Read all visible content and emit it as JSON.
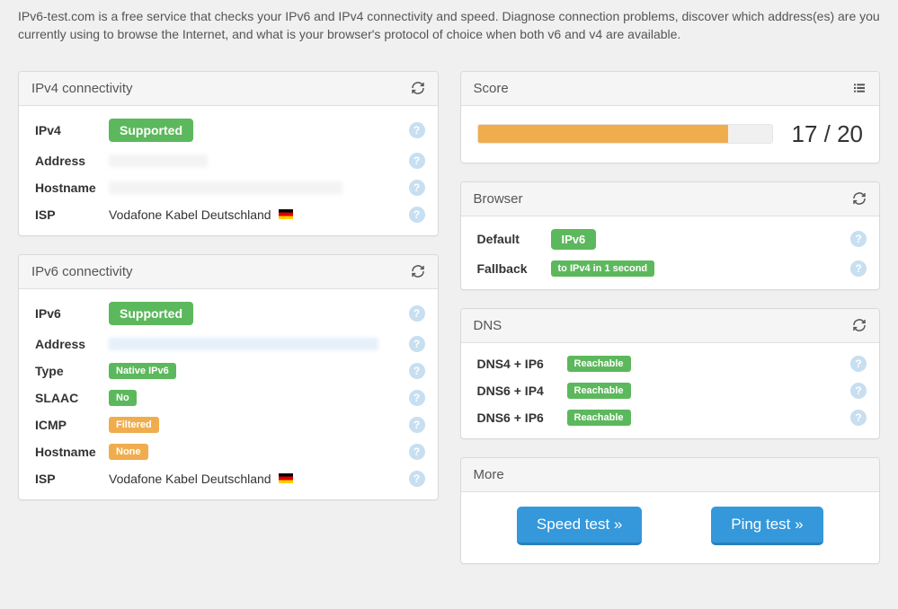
{
  "subtitle": "IPv6-test.com is a free service that checks your IPv6 and IPv4 connectivity and speed. Diagnose connection problems, discover which address(es) are you currently using to browse the Internet, and what is your browser's protocol of choice when both v6 and v4 are available.",
  "ipv4_panel": {
    "title": "IPv4 connectivity",
    "rows": {
      "ipv4": {
        "label": "IPv4",
        "badge": "Supported",
        "badge_color": "green"
      },
      "address": {
        "label": "Address",
        "redacted": true,
        "redact_width": 110,
        "redact_tint": "plain"
      },
      "hostname": {
        "label": "Hostname",
        "redacted": true,
        "redact_width": 260,
        "redact_tint": "plain"
      },
      "isp": {
        "label": "ISP",
        "text": "Vodafone Kabel Deutschland",
        "flag": "de"
      }
    }
  },
  "ipv6_panel": {
    "title": "IPv6 connectivity",
    "rows": {
      "ipv6": {
        "label": "IPv6",
        "badge": "Supported",
        "badge_color": "green"
      },
      "address": {
        "label": "Address",
        "redacted": true,
        "redact_width": 300,
        "redact_tint": "blue"
      },
      "type": {
        "label": "Type",
        "badge": "Native IPv6",
        "badge_color": "green",
        "badge_size": "sm"
      },
      "slaac": {
        "label": "SLAAC",
        "badge": "No",
        "badge_color": "green",
        "badge_size": "sm"
      },
      "icmp": {
        "label": "ICMP",
        "badge": "Filtered",
        "badge_color": "orange",
        "badge_size": "sm"
      },
      "hostname": {
        "label": "Hostname",
        "badge": "None",
        "badge_color": "orange",
        "badge_size": "sm"
      },
      "isp": {
        "label": "ISP",
        "text": "Vodafone Kabel Deutschland",
        "flag": "de"
      }
    }
  },
  "score_panel": {
    "title": "Score",
    "value": 17,
    "max": 20,
    "display": "17 / 20",
    "bar_percent": 85,
    "bar_color": "#f0ad4e",
    "bar_bg": "#f0f0f0"
  },
  "browser_panel": {
    "title": "Browser",
    "rows": {
      "default": {
        "label": "Default",
        "badge": "IPv6",
        "badge_color": "green"
      },
      "fallback": {
        "label": "Fallback",
        "badge": "to IPv4 in 1 second",
        "badge_color": "green",
        "badge_size": "sm"
      }
    }
  },
  "dns_panel": {
    "title": "DNS",
    "rows": {
      "d4i6": {
        "label": "DNS4 + IP6",
        "badge": "Reachable",
        "badge_color": "green",
        "badge_size": "sm"
      },
      "d6i4": {
        "label": "DNS6 + IP4",
        "badge": "Reachable",
        "badge_color": "green",
        "badge_size": "sm"
      },
      "d6i6": {
        "label": "DNS6 + IP6",
        "badge": "Reachable",
        "badge_color": "green",
        "badge_size": "sm"
      }
    }
  },
  "more_panel": {
    "title": "More",
    "buttons": {
      "speed": "Speed test »",
      "ping": "Ping test »"
    }
  },
  "colors": {
    "green": "#5cb85c",
    "orange": "#f0ad4e",
    "blue_btn": "#3498db",
    "help_icon": "#c7dff0",
    "page_bg": "#f0f0f0",
    "panel_bg": "#ffffff"
  }
}
